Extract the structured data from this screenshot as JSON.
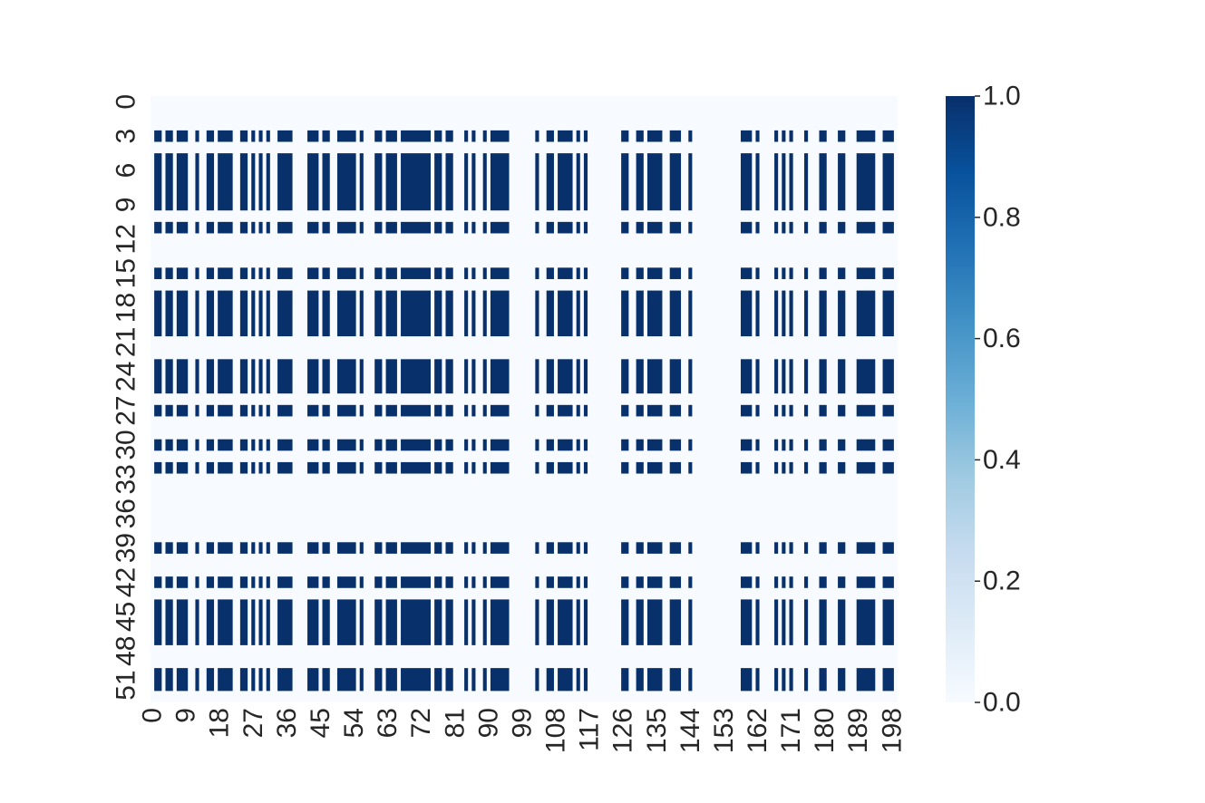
{
  "chart_data": {
    "type": "heatmap",
    "title": "",
    "xlabel": "",
    "ylabel": "",
    "n_cols": 200,
    "n_rows": 53,
    "x_tick_labels": [
      "0",
      "9",
      "18",
      "27",
      "36",
      "45",
      "54",
      "63",
      "72",
      "81",
      "90",
      "99",
      "108",
      "117",
      "126",
      "135",
      "144",
      "153",
      "162",
      "171",
      "180",
      "189",
      "198"
    ],
    "y_tick_labels": [
      "0",
      "3",
      "6",
      "9",
      "12",
      "15",
      "18",
      "21",
      "24",
      "27",
      "30",
      "33",
      "36",
      "39",
      "42",
      "45",
      "48",
      "51"
    ],
    "active_column_segments": [
      [
        1,
        2
      ],
      [
        4,
        5
      ],
      [
        7,
        9
      ],
      [
        12,
        12
      ],
      [
        15,
        16
      ],
      [
        18,
        21
      ],
      [
        24,
        25
      ],
      [
        27,
        27
      ],
      [
        29,
        29
      ],
      [
        31,
        31
      ],
      [
        34,
        37
      ],
      [
        42,
        44
      ],
      [
        46,
        47
      ],
      [
        50,
        54
      ],
      [
        56,
        56
      ],
      [
        60,
        61
      ],
      [
        63,
        65
      ],
      [
        67,
        74
      ],
      [
        76,
        77
      ],
      [
        79,
        80
      ],
      [
        84,
        84
      ],
      [
        86,
        86
      ],
      [
        89,
        89
      ],
      [
        91,
        95
      ],
      [
        103,
        103
      ],
      [
        106,
        107
      ],
      [
        109,
        112
      ],
      [
        114,
        114
      ],
      [
        116,
        116
      ],
      [
        126,
        127
      ],
      [
        130,
        131
      ],
      [
        133,
        136
      ],
      [
        139,
        141
      ],
      [
        144,
        144
      ],
      [
        158,
        160
      ],
      [
        162,
        162
      ],
      [
        167,
        167
      ],
      [
        169,
        169
      ],
      [
        171,
        171
      ],
      [
        175,
        175
      ],
      [
        179,
        180
      ],
      [
        184,
        185
      ],
      [
        189,
        193
      ],
      [
        196,
        198
      ]
    ],
    "active_row_segments": [
      [
        3,
        3
      ],
      [
        5,
        9
      ],
      [
        11,
        11
      ],
      [
        15,
        15
      ],
      [
        17,
        20
      ],
      [
        23,
        25
      ],
      [
        27,
        27
      ],
      [
        30,
        30
      ],
      [
        32,
        32
      ],
      [
        39,
        39
      ],
      [
        42,
        42
      ],
      [
        44,
        47
      ],
      [
        50,
        51
      ]
    ],
    "values_note_low": 0.0,
    "values_note_high": 1.0,
    "colorbar": {
      "ticks": [
        "0.0",
        "0.2",
        "0.4",
        "0.6",
        "0.8",
        "1.0"
      ],
      "range": [
        0.0,
        1.0
      ],
      "colormap": "Blues"
    },
    "colors": {
      "low": "#f7fbff",
      "high": "#08306b",
      "text": "#262626",
      "background": "#ffffff"
    }
  }
}
